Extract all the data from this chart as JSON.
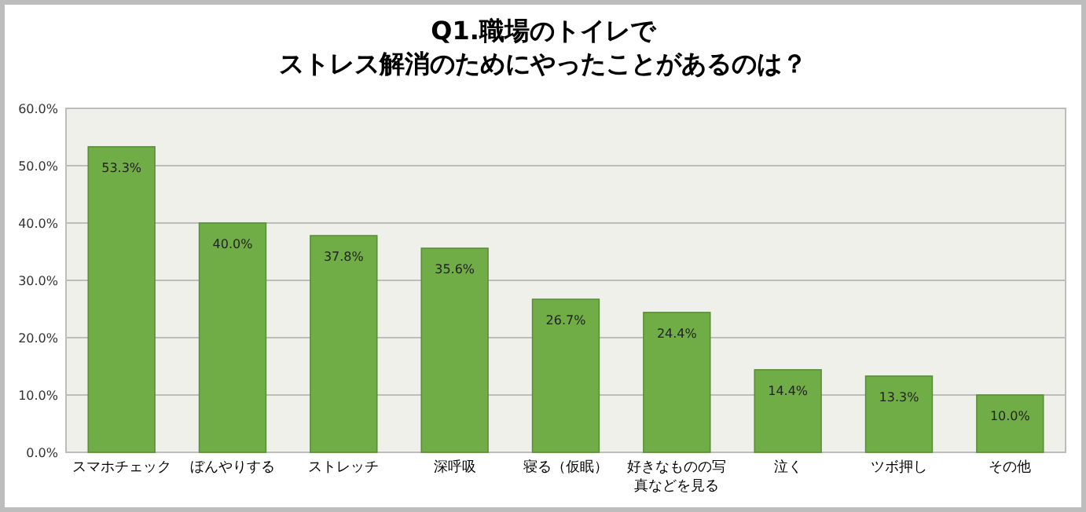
{
  "chart_data": {
    "type": "bar",
    "title": "Q1.職場のトイレで",
    "subtitle": "ストレス解消のためにやったことがあるのは？",
    "categories": [
      "スマホチェック",
      "ぼんやりする",
      "ストレッチ",
      "深呼吸",
      "寝る（仮眠）",
      "好きなものの写真などを見る",
      "泣く",
      "ツボ押し",
      "その他"
    ],
    "values": [
      53.3,
      40.0,
      37.8,
      35.6,
      26.7,
      24.4,
      14.4,
      13.3,
      10.0
    ],
    "value_labels": [
      "53.3%",
      "40.0%",
      "37.8%",
      "35.6%",
      "26.7%",
      "24.4%",
      "14.4%",
      "13.3%",
      "10.0%"
    ],
    "color": "#70ad47",
    "ylim": [
      0,
      60
    ],
    "yticks": [
      {
        "value": 0,
        "label": "0.0%"
      },
      {
        "value": 10,
        "label": "10.0%"
      },
      {
        "value": 20,
        "label": "20.0%"
      },
      {
        "value": 30,
        "label": "30.0%"
      },
      {
        "value": 40,
        "label": "40.0%"
      },
      {
        "value": 50,
        "label": "50.0%"
      },
      {
        "value": 60,
        "label": "60.0%"
      }
    ],
    "grid": "y"
  }
}
